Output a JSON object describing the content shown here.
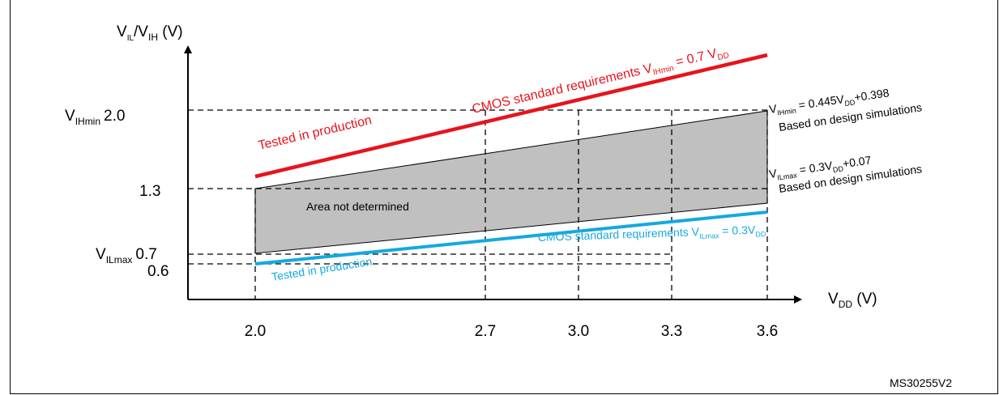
{
  "diagram": {
    "reference_code": "MS30255V2",
    "y_axis": {
      "label_main": "V",
      "label_sub1": "IL",
      "label_sep": "/V",
      "label_sub2": "IH",
      "label_unit": " (V)"
    },
    "x_axis": {
      "label_main": "V",
      "label_sub": "DD",
      "label_unit": " (V)"
    },
    "y_ticks": [
      {
        "value": 2.0,
        "prefix": "V",
        "prefix_sub": "IHmin",
        "text": "2.0"
      },
      {
        "value": 1.3,
        "prefix": "",
        "prefix_sub": "",
        "text": "1.3"
      },
      {
        "value": 0.7,
        "prefix": "V",
        "prefix_sub": "ILmax",
        "text": "0.7"
      },
      {
        "value": 0.6,
        "prefix": "",
        "prefix_sub": "",
        "text": "0.6"
      }
    ],
    "x_ticks": [
      {
        "value": 2.0,
        "text": "2.0"
      },
      {
        "value": 2.7,
        "text": "2.7"
      },
      {
        "value": 3.0,
        "text": "3.0"
      },
      {
        "value": 3.3,
        "text": "3.3"
      },
      {
        "value": 3.6,
        "text": "3.6"
      }
    ],
    "lines": {
      "cmos_vih": {
        "color": "#e8131c",
        "label_pre": "CMOS standard requirements V",
        "label_sub": "IHmin",
        "label_post": " = 0.7 V",
        "label_sub2": "DD",
        "production_label": "Tested in production"
      },
      "cmos_vil": {
        "color": "#15a8e0",
        "label_pre": "CMOS standard  requirements V",
        "label_sub": "ILmax",
        "label_post": " = 0.3V",
        "label_sub2": "DD",
        "production_label": "Tested in production"
      },
      "sim_vih": {
        "label_pre": "V",
        "label_sub": "IHmin",
        "label_mid": " = 0.445V",
        "label_sub2": "DD",
        "label_post": "+0.398",
        "note": "Based on design simulations"
      },
      "sim_vil": {
        "label_pre": "V",
        "label_sub": "ILmax",
        "label_mid": " = 0.3V",
        "label_sub2": "DD",
        "label_post": "+0.07",
        "note": "Based on design simulations"
      }
    },
    "area_label": "Area not determined",
    "area_color": "#c0c0c0"
  }
}
